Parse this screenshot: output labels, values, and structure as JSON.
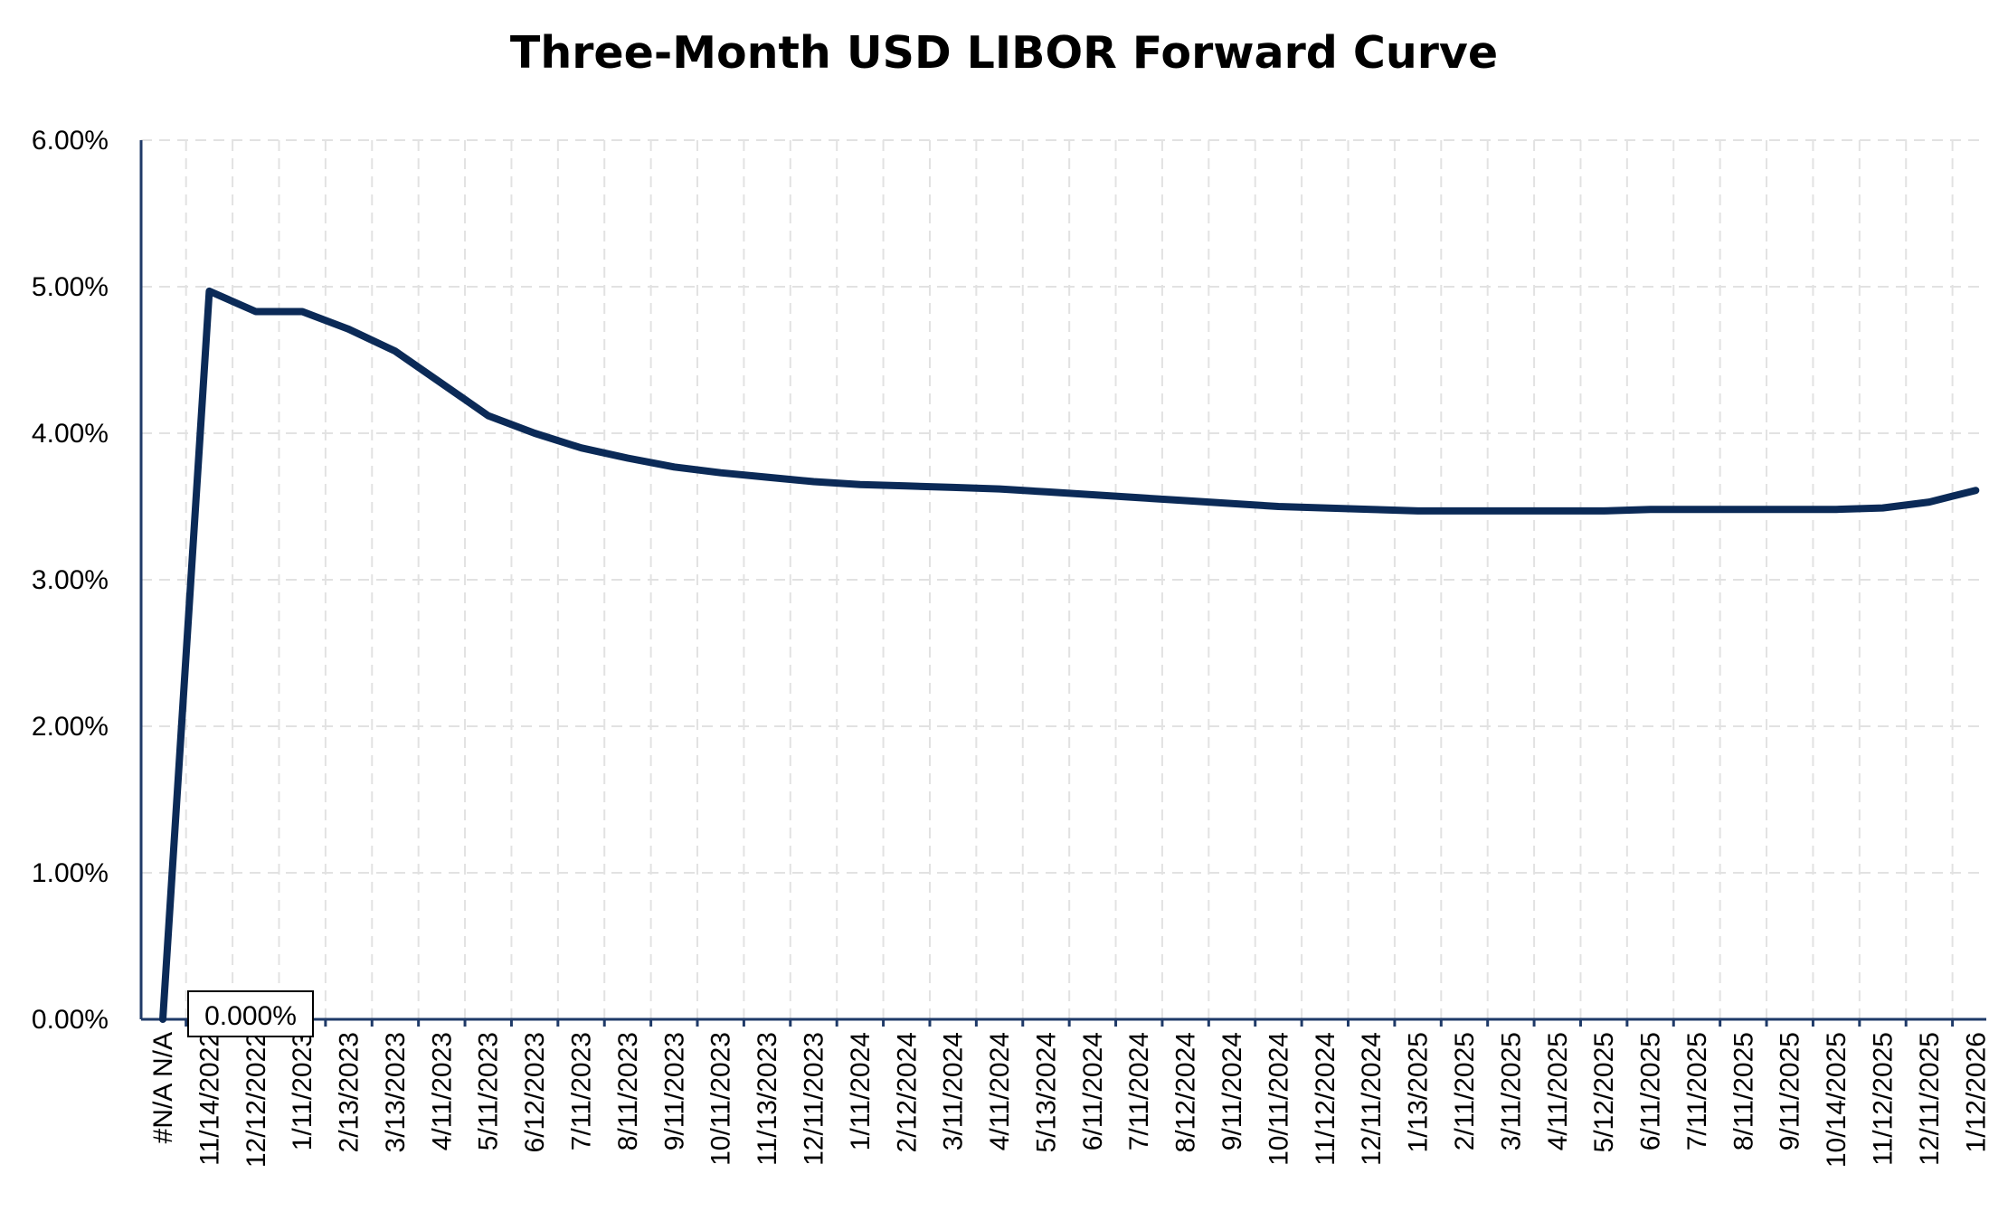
{
  "chart_data": {
    "type": "line",
    "title": "Three-Month USD LIBOR Forward Curve",
    "xlabel": "",
    "ylabel": "",
    "ylim": [
      0,
      6
    ],
    "yticks": [
      "0.00%",
      "1.00%",
      "2.00%",
      "3.00%",
      "4.00%",
      "5.00%",
      "6.00%"
    ],
    "categories": [
      "#N/A N/A",
      "11/14/2022",
      "12/12/2022",
      "1/11/2023",
      "2/13/2023",
      "3/13/2023",
      "4/11/2023",
      "5/11/2023",
      "6/12/2023",
      "7/11/2023",
      "8/11/2023",
      "9/11/2023",
      "10/11/2023",
      "11/13/2023",
      "12/11/2023",
      "1/11/2024",
      "2/12/2024",
      "3/11/2024",
      "4/11/2024",
      "5/13/2024",
      "6/11/2024",
      "7/11/2024",
      "8/12/2024",
      "9/11/2024",
      "10/11/2024",
      "11/12/2024",
      "12/11/2024",
      "1/13/2025",
      "2/11/2025",
      "3/11/2025",
      "4/11/2025",
      "5/12/2025",
      "6/11/2025",
      "7/11/2025",
      "8/11/2025",
      "9/11/2025",
      "10/14/2025",
      "11/12/2025",
      "12/11/2025",
      "1/12/2026"
    ],
    "series": [
      {
        "color": "#0b2a57",
        "values": [
          0.0,
          4.97,
          4.83,
          4.83,
          4.71,
          4.56,
          4.34,
          4.12,
          4.0,
          3.9,
          3.83,
          3.77,
          3.73,
          3.7,
          3.67,
          3.65,
          3.64,
          3.63,
          3.62,
          3.6,
          3.58,
          3.56,
          3.54,
          3.52,
          3.5,
          3.49,
          3.48,
          3.47,
          3.47,
          3.47,
          3.47,
          3.47,
          3.48,
          3.48,
          3.48,
          3.48,
          3.48,
          3.49,
          3.53,
          3.61
        ]
      }
    ],
    "data_labels": [
      {
        "category": "#N/A N/A",
        "text": "0.000%"
      }
    ],
    "grid": true,
    "legend": "none"
  }
}
